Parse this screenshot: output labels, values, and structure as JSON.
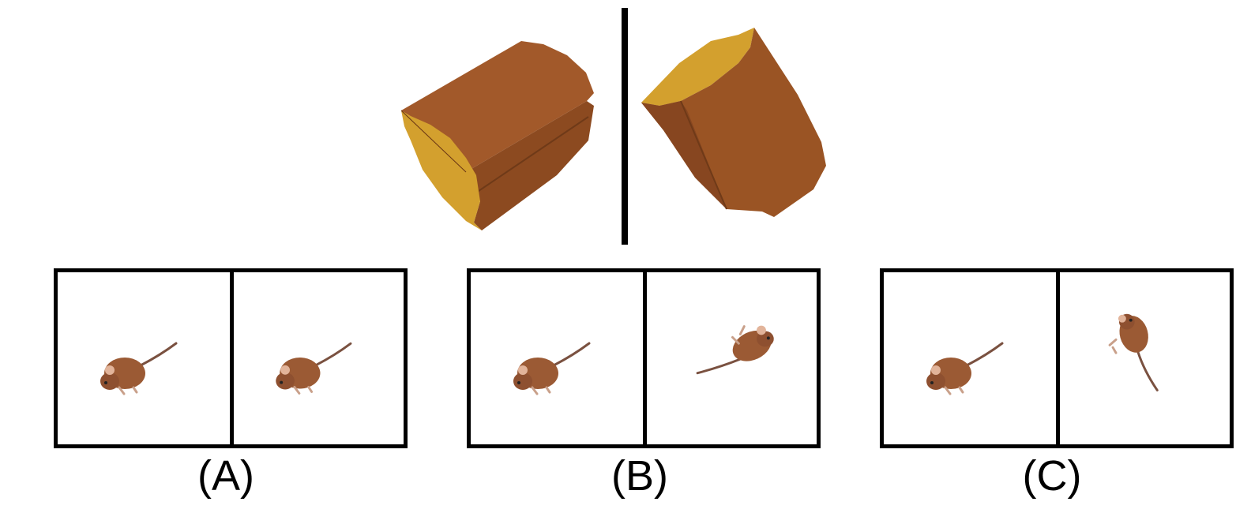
{
  "reference": {
    "left_image_icon": "cheese-wedge-view-1",
    "right_image_icon": "cheese-wedge-view-2",
    "colors": {
      "cheese_side": "#9a5424",
      "cheese_side_dark": "#8a4a1f",
      "cheese_face": "#d3a02e",
      "divider": "#000000"
    }
  },
  "options": [
    {
      "label": "(A)",
      "left_icon": "mouse-icon",
      "right_icon": "mouse-icon"
    },
    {
      "label": "(B)",
      "left_icon": "mouse-icon",
      "right_icon": "mouse-rotated-icon"
    },
    {
      "label": "(C)",
      "left_icon": "mouse-icon",
      "right_icon": "mouse-rotated-icon"
    }
  ],
  "mouse_colors": {
    "body": "#9b5a34",
    "belly": "#c08a5e",
    "ear": "#e2b49a",
    "tail": "#7a5140"
  }
}
